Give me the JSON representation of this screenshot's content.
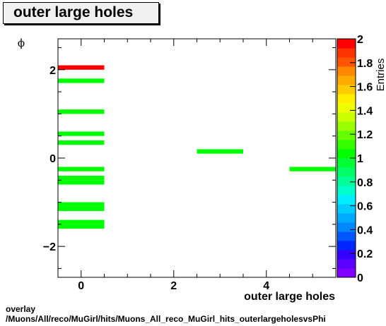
{
  "title": "outer large holes",
  "footer": {
    "line1": "overlay",
    "line2": "/Muons/All/reco/MuGirl/hits/Muons_All_reco_MuGirl_hits_outerlargeholesvsPhi"
  },
  "chart_data": {
    "type": "heatmap",
    "xlabel": "outer large holes",
    "ylabel": "ϕ",
    "zlabel": "Entries",
    "xlim": [
      -0.5,
      5.5
    ],
    "ylim": [
      -2.7,
      2.7
    ],
    "zlim": [
      0,
      2
    ],
    "x_ticks": [
      0,
      2,
      4
    ],
    "y_ticks": [
      -2,
      0,
      2
    ],
    "z_ticks": [
      0,
      0.2,
      0.4,
      0.6,
      0.8,
      1,
      1.2,
      1.4,
      1.6,
      1.8,
      2
    ],
    "x_tick_labels": [
      "0",
      "2",
      "4"
    ],
    "y_tick_labels": [
      "−2",
      "0",
      "2"
    ],
    "z_tick_labels": [
      "0",
      "0.2",
      "0.4",
      "0.6",
      "0.8",
      "1",
      "1.2",
      "1.4",
      "1.6",
      "1.8",
      "2"
    ],
    "bin_height": 0.1,
    "cells": [
      {
        "x0": -0.5,
        "x1": 0.5,
        "y": 2.05,
        "value": 2
      },
      {
        "x0": -0.5,
        "x1": 0.5,
        "y": 1.75,
        "value": 1
      },
      {
        "x0": -0.5,
        "x1": 0.5,
        "y": 1.05,
        "value": 1
      },
      {
        "x0": -0.5,
        "x1": 0.5,
        "y": 0.55,
        "value": 1
      },
      {
        "x0": -0.5,
        "x1": 0.5,
        "y": 0.35,
        "value": 1
      },
      {
        "x0": -0.5,
        "x1": 0.5,
        "y": -0.25,
        "value": 1
      },
      {
        "x0": -0.5,
        "x1": 0.5,
        "y": -0.45,
        "value": 1
      },
      {
        "x0": -0.5,
        "x1": 0.5,
        "y": -0.55,
        "value": 1
      },
      {
        "x0": -0.5,
        "x1": 0.5,
        "y": -1.05,
        "value": 1
      },
      {
        "x0": -0.5,
        "x1": 0.5,
        "y": -1.15,
        "value": 1
      },
      {
        "x0": -0.5,
        "x1": 0.5,
        "y": -1.45,
        "value": 1
      },
      {
        "x0": -0.5,
        "x1": 0.5,
        "y": -1.55,
        "value": 1
      },
      {
        "x0": 2.5,
        "x1": 3.5,
        "y": 0.15,
        "value": 1
      },
      {
        "x0": 4.5,
        "x1": 5.5,
        "y": -0.25,
        "value": 1
      }
    ],
    "palette": [
      "#7f00ff",
      "#5a00ff",
      "#3300ff",
      "#0026ff",
      "#0057ff",
      "#0088ff",
      "#00aaff",
      "#00ccff",
      "#00eeff",
      "#00ffcc",
      "#00ff99",
      "#00ff66",
      "#00ff33",
      "#00ff00",
      "#33ff00",
      "#66ff00",
      "#99ff00",
      "#ccff00",
      "#eeff00",
      "#ffee00",
      "#ffcc00",
      "#ffaa00",
      "#ff8800",
      "#ff5500",
      "#ff3300",
      "#ff0000"
    ]
  }
}
